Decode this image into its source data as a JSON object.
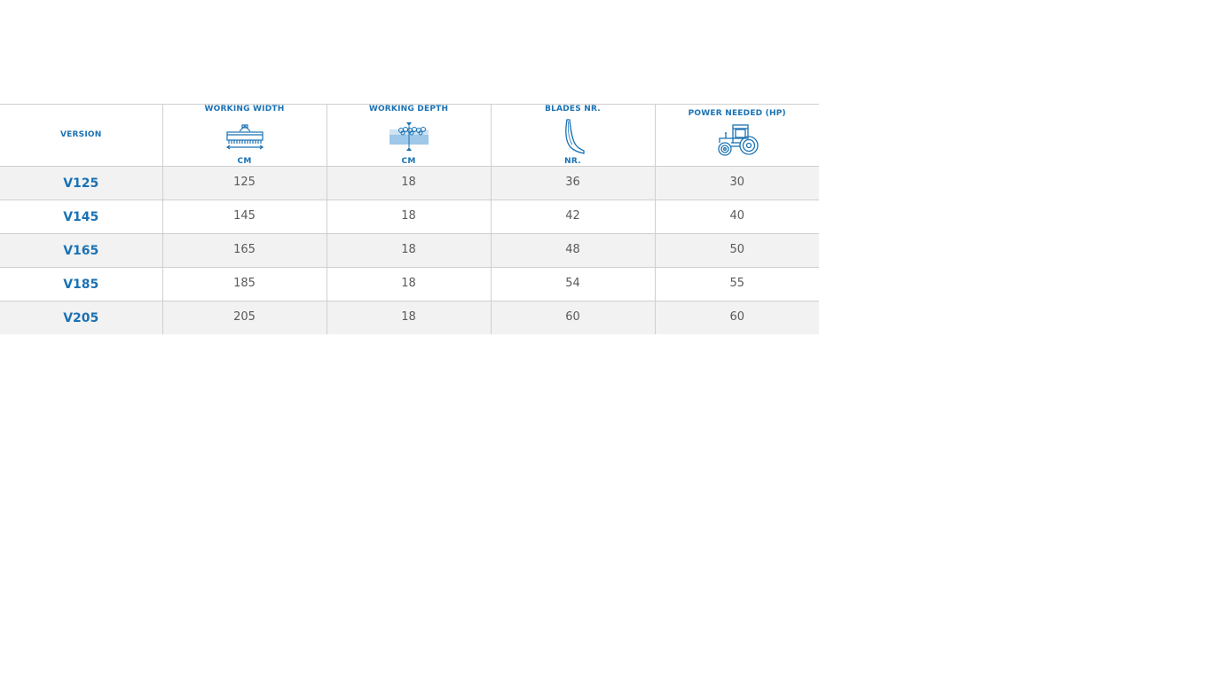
{
  "table": {
    "headers": [
      {
        "title": "VERSION"
      },
      {
        "title": "WORKING WIDTH",
        "unit": "CM",
        "icon": "working-width-icon"
      },
      {
        "title": "WORKING DEPTH",
        "unit": "CM",
        "icon": "working-depth-icon"
      },
      {
        "title": "BLADES NR.",
        "unit": "NR.",
        "icon": "blade-icon"
      },
      {
        "title": "POWER NEEDED (HP)",
        "icon": "tractor-icon"
      }
    ],
    "rows": [
      {
        "version": "V125",
        "width": "125",
        "depth": "18",
        "blades": "36",
        "power": "30"
      },
      {
        "version": "V145",
        "width": "145",
        "depth": "18",
        "blades": "42",
        "power": "40"
      },
      {
        "version": "V165",
        "width": "165",
        "depth": "18",
        "blades": "48",
        "power": "50"
      },
      {
        "version": "V185",
        "width": "185",
        "depth": "18",
        "blades": "54",
        "power": "55"
      },
      {
        "version": "V205",
        "width": "205",
        "depth": "18",
        "blades": "60",
        "power": "60"
      }
    ]
  },
  "colors": {
    "accent": "#1a72b4",
    "row_alt": "#f2f2f2",
    "border": "#cfcfcf",
    "value_text": "#5a5a5a"
  }
}
